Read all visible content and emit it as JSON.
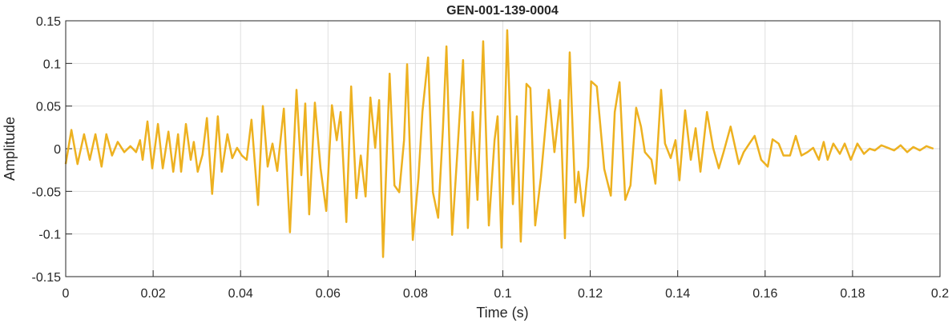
{
  "chart_data": {
    "type": "line",
    "title": "GEN-001-139-0004",
    "x_label": "Time (s)",
    "y_label": "Amplitude",
    "color": "#EDB120",
    "grid": true,
    "xlim": [
      0,
      0.2
    ],
    "xticks": [
      0,
      0.02,
      0.04,
      0.06,
      0.08,
      0.1,
      0.12,
      0.14,
      0.16,
      0.18,
      0.2
    ],
    "ylim": [
      -0.15,
      0.15
    ],
    "yticks": [
      -0.15,
      -0.1,
      -0.05,
      0,
      0.05,
      0.1,
      0.15
    ],
    "x": [
      0,
      0.0013,
      0.0027,
      0.0042,
      0.0055,
      0.0068,
      0.0082,
      0.0093,
      0.0106,
      0.0119,
      0.0134,
      0.0148,
      0.0161,
      0.017,
      0.0176,
      0.0187,
      0.0198,
      0.0211,
      0.0222,
      0.0235,
      0.0246,
      0.0257,
      0.0264,
      0.0275,
      0.0286,
      0.0293,
      0.0302,
      0.0313,
      0.0323,
      0.0335,
      0.0348,
      0.0357,
      0.037,
      0.0381,
      0.0392,
      0.0403,
      0.0414,
      0.0425,
      0.044,
      0.0451,
      0.0462,
      0.0473,
      0.0484,
      0.0499,
      0.0513,
      0.0528,
      0.0539,
      0.0548,
      0.0557,
      0.057,
      0.0583,
      0.0596,
      0.0609,
      0.062,
      0.0629,
      0.0642,
      0.0653,
      0.0665,
      0.0675,
      0.0686,
      0.0697,
      0.0708,
      0.0717,
      0.0726,
      0.0741,
      0.0752,
      0.0763,
      0.0774,
      0.0781,
      0.0794,
      0.0807,
      0.0816,
      0.0829,
      0.084,
      0.0852,
      0.0863,
      0.0871,
      0.0884,
      0.0896,
      0.0909,
      0.092,
      0.0931,
      0.0942,
      0.0955,
      0.0968,
      0.0981,
      0.0988,
      0.0997,
      0.101,
      0.1023,
      0.1032,
      0.1041,
      0.1054,
      0.1063,
      0.1074,
      0.1087,
      0.1105,
      0.1118,
      0.1131,
      0.1142,
      0.1153,
      0.1166,
      0.1173,
      0.1184,
      0.1195,
      0.1202,
      0.1215,
      0.1232,
      0.1247,
      0.1256,
      0.1267,
      0.128,
      0.1292,
      0.1305,
      0.1316,
      0.1325,
      0.134,
      0.1349,
      0.1362,
      0.1371,
      0.1384,
      0.1395,
      0.1404,
      0.1417,
      0.143,
      0.1441,
      0.1452,
      0.1467,
      0.1481,
      0.1494,
      0.1505,
      0.1521,
      0.154,
      0.1551,
      0.1564,
      0.1576,
      0.1591,
      0.1606,
      0.1617,
      0.1631,
      0.1642,
      0.1657,
      0.167,
      0.1683,
      0.1697,
      0.171,
      0.1723,
      0.1734,
      0.1743,
      0.1756,
      0.1771,
      0.1782,
      0.1796,
      0.1811,
      0.1826,
      0.1839,
      0.1851,
      0.1866,
      0.1881,
      0.1895,
      0.191,
      0.1925,
      0.1939,
      0.1954,
      0.1969,
      0.1985
    ],
    "values": [
      -0.018,
      0.022,
      -0.018,
      0.017,
      -0.013,
      0.017,
      -0.021,
      0.017,
      -0.008,
      0.008,
      -0.004,
      0.003,
      -0.004,
      0.01,
      -0.013,
      0.032,
      -0.023,
      0.029,
      -0.023,
      0.02,
      -0.027,
      0.017,
      -0.027,
      0.029,
      -0.013,
      0.008,
      -0.027,
      -0.007,
      0.036,
      -0.053,
      0.038,
      -0.027,
      0.017,
      -0.011,
      0.001,
      -0.008,
      -0.013,
      0.034,
      -0.066,
      0.05,
      -0.021,
      0.006,
      -0.026,
      0.047,
      -0.098,
      0.069,
      -0.031,
      0.053,
      -0.077,
      0.054,
      -0.023,
      -0.073,
      0.051,
      0.01,
      0.043,
      -0.086,
      0.073,
      -0.058,
      -0.008,
      -0.056,
      0.06,
      0.001,
      0.057,
      -0.127,
      0.088,
      -0.043,
      -0.051,
      0.01,
      0.099,
      -0.107,
      -0.034,
      0.043,
      0.107,
      -0.051,
      -0.081,
      0.024,
      0.12,
      -0.101,
      -0.004,
      0.104,
      -0.093,
      0.043,
      -0.06,
      0.126,
      -0.09,
      0.01,
      0.038,
      -0.116,
      0.139,
      -0.065,
      0.038,
      -0.109,
      0.076,
      0.071,
      -0.09,
      -0.034,
      0.069,
      -0.004,
      0.057,
      -0.105,
      0.113,
      -0.063,
      -0.027,
      -0.079,
      -0.021,
      0.079,
      0.073,
      -0.024,
      -0.055,
      0.043,
      0.078,
      -0.06,
      -0.043,
      0.048,
      0.026,
      -0.004,
      -0.013,
      -0.041,
      0.069,
      0.006,
      -0.011,
      0.01,
      -0.037,
      0.045,
      -0.013,
      0.024,
      -0.027,
      0.043,
      0.001,
      -0.023,
      -0.004,
      0.026,
      -0.018,
      -0.004,
      0.006,
      0.015,
      -0.013,
      -0.021,
      0.011,
      0.006,
      -0.008,
      -0.008,
      0.015,
      -0.008,
      -0.004,
      0.001,
      -0.013,
      0.008,
      -0.013,
      0.006,
      -0.006,
      0.006,
      -0.013,
      0.006,
      -0.006,
      0,
      -0.002,
      0.004,
      0.001,
      -0.002,
      0.004,
      -0.004,
      0.002,
      -0.002,
      0.003,
      0
    ]
  }
}
